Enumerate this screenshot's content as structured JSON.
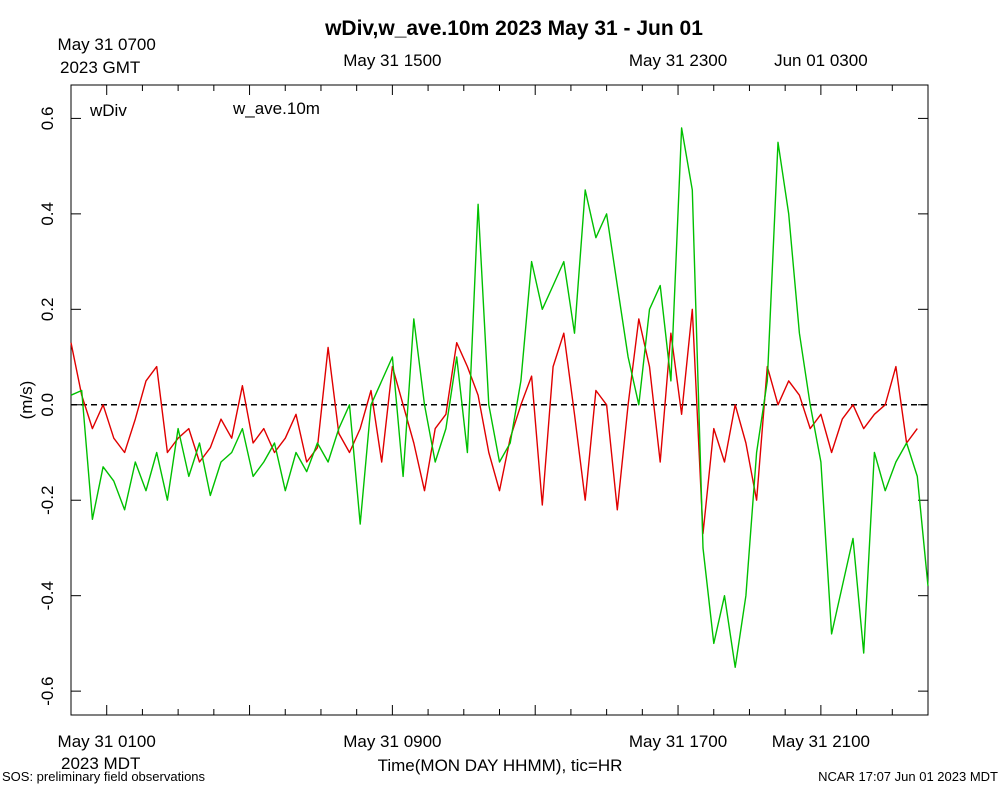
{
  "chart_data": {
    "type": "line",
    "title": "wDiv,w_ave.10m 2023 May 31 - Jun 01",
    "xlabel": "Time(MON DAY HHMM), tic=HR",
    "ylabel": "(m/s)",
    "ylim": [
      -0.65,
      0.67
    ],
    "xlim_hours": [
      0,
      24
    ],
    "grid": false,
    "zero_line": "dashed",
    "legend": [
      {
        "label": "wDiv",
        "color": "#e00000"
      },
      {
        "label": "w_ave.10m",
        "color": "#00c000"
      }
    ],
    "y_ticks": [
      -0.6,
      -0.4,
      -0.2,
      0.0,
      0.2,
      0.4,
      0.6
    ],
    "y_tick_labels": [
      "-0.6",
      "-0.4",
      "-0.2",
      "0.0",
      "0.2",
      "0.4",
      "0.6"
    ],
    "bottom_tick_labels": [
      {
        "hour": 1,
        "line1": "May 31 0100",
        "line2": "2023 MDT"
      },
      {
        "hour": 9,
        "line1": "May 31 0900",
        "line2": ""
      },
      {
        "hour": 17,
        "line1": "May 31 1700",
        "line2": ""
      },
      {
        "hour": 21,
        "line1": "May 31 2100",
        "line2": ""
      }
    ],
    "top_tick_labels": [
      {
        "hour": 1,
        "line1": "May 31 0700",
        "line2": "2023 GMT"
      },
      {
        "hour": 9,
        "line1": "May 31 1500",
        "line2": ""
      },
      {
        "hour": 17,
        "line1": "May 31 2300",
        "line2": ""
      },
      {
        "hour": 21,
        "line1": "Jun 01 0300",
        "line2": ""
      }
    ],
    "series": [
      {
        "name": "wDiv",
        "color": "#e00000",
        "x_hours": [
          0.0,
          0.3,
          0.6,
          0.9,
          1.2,
          1.5,
          1.8,
          2.1,
          2.4,
          2.7,
          3.0,
          3.3,
          3.6,
          3.9,
          4.2,
          4.5,
          4.8,
          5.1,
          5.4,
          5.7,
          6.0,
          6.3,
          6.6,
          6.9,
          7.2,
          7.5,
          7.8,
          8.1,
          8.4,
          8.7,
          9.0,
          9.3,
          9.6,
          9.9,
          10.2,
          10.5,
          10.8,
          11.1,
          11.4,
          11.7,
          12.0,
          12.3,
          12.6,
          12.9,
          13.2,
          13.5,
          13.8,
          14.1,
          14.4,
          14.7,
          15.0,
          15.3,
          15.6,
          15.9,
          16.2,
          16.5,
          16.8,
          17.1,
          17.4,
          17.7,
          18.0,
          18.3,
          18.6,
          18.9,
          19.2,
          19.5,
          19.8,
          20.1,
          20.4,
          20.7,
          21.0,
          21.3,
          21.6,
          21.9,
          22.2,
          22.5,
          22.8,
          23.1,
          23.4,
          23.7
        ],
        "values": [
          0.13,
          0.02,
          -0.05,
          0.0,
          -0.07,
          -0.1,
          -0.03,
          0.05,
          0.08,
          -0.1,
          -0.07,
          -0.05,
          -0.12,
          -0.09,
          -0.03,
          -0.07,
          0.04,
          -0.08,
          -0.05,
          -0.1,
          -0.07,
          -0.02,
          -0.12,
          -0.09,
          0.12,
          -0.06,
          -0.1,
          -0.05,
          0.03,
          -0.12,
          0.08,
          0.0,
          -0.08,
          -0.18,
          -0.05,
          -0.02,
          0.13,
          0.08,
          0.02,
          -0.1,
          -0.18,
          -0.07,
          0.0,
          0.06,
          -0.21,
          0.08,
          0.15,
          -0.02,
          -0.2,
          0.03,
          0.0,
          -0.22,
          0.0,
          0.18,
          0.08,
          -0.12,
          0.15,
          -0.02,
          0.2,
          -0.27,
          -0.05,
          -0.12,
          0.0,
          -0.08,
          -0.2,
          0.08,
          0.0,
          0.05,
          0.02,
          -0.05,
          -0.02,
          -0.1,
          -0.03,
          0.0,
          -0.05,
          -0.02,
          0.0,
          0.08,
          -0.08,
          -0.05
        ]
      },
      {
        "name": "w_ave.10m",
        "color": "#00c000",
        "x_hours": [
          0.0,
          0.3,
          0.6,
          0.9,
          1.2,
          1.5,
          1.8,
          2.1,
          2.4,
          2.7,
          3.0,
          3.3,
          3.6,
          3.9,
          4.2,
          4.5,
          4.8,
          5.1,
          5.4,
          5.7,
          6.0,
          6.3,
          6.6,
          6.9,
          7.2,
          7.5,
          7.8,
          8.1,
          8.4,
          8.7,
          9.0,
          9.3,
          9.6,
          9.9,
          10.2,
          10.5,
          10.8,
          11.1,
          11.4,
          11.7,
          12.0,
          12.3,
          12.6,
          12.9,
          13.2,
          13.5,
          13.8,
          14.1,
          14.4,
          14.7,
          15.0,
          15.3,
          15.6,
          15.9,
          16.2,
          16.5,
          16.8,
          17.1,
          17.4,
          17.7,
          18.0,
          18.3,
          18.6,
          18.9,
          19.2,
          19.5,
          19.8,
          20.1,
          20.4,
          20.7,
          21.0,
          21.3,
          21.6,
          21.9,
          22.2,
          22.5,
          22.8,
          23.1,
          23.4,
          23.7,
          24.0
        ],
        "values": [
          0.02,
          0.03,
          -0.24,
          -0.13,
          -0.16,
          -0.22,
          -0.12,
          -0.18,
          -0.1,
          -0.2,
          -0.05,
          -0.15,
          -0.08,
          -0.19,
          -0.12,
          -0.1,
          -0.05,
          -0.15,
          -0.12,
          -0.08,
          -0.18,
          -0.1,
          -0.14,
          -0.08,
          -0.12,
          -0.05,
          0.0,
          -0.25,
          0.0,
          0.05,
          0.1,
          -0.15,
          0.18,
          0.0,
          -0.12,
          -0.05,
          0.1,
          -0.1,
          0.42,
          0.0,
          -0.12,
          -0.08,
          0.05,
          0.3,
          0.2,
          0.25,
          0.3,
          0.15,
          0.45,
          0.35,
          0.4,
          0.25,
          0.1,
          0.0,
          0.2,
          0.25,
          0.05,
          0.58,
          0.45,
          -0.3,
          -0.5,
          -0.4,
          -0.55,
          -0.4,
          -0.1,
          0.05,
          0.55,
          0.4,
          0.15,
          0.0,
          -0.12,
          -0.48,
          -0.38,
          -0.28,
          -0.52,
          -0.1,
          -0.18,
          -0.12,
          -0.08,
          -0.15,
          -0.38
        ]
      }
    ]
  },
  "footer": {
    "left_note": "SOS: preliminary field observations",
    "right_note": "NCAR 17:07 Jun 01 2023 MDT"
  }
}
